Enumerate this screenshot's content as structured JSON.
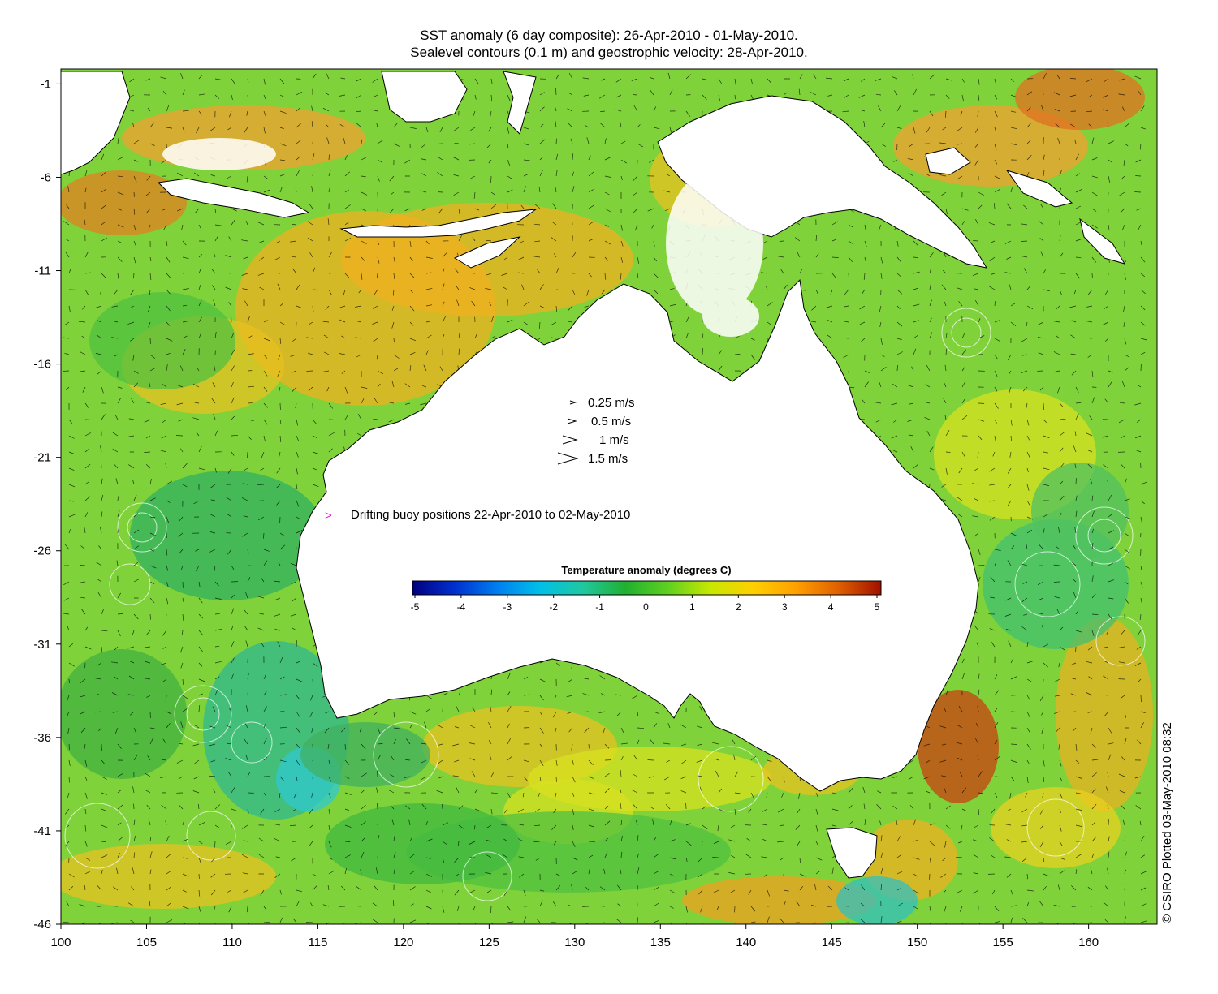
{
  "title": {
    "line1": "SST anomaly (6 day composite): 26-Apr-2010 - 01-May-2010.",
    "line2": "Sealevel contours (0.1 m) and geostrophic velocity: 28-Apr-2010."
  },
  "map": {
    "region": "Australia",
    "lon_range": [
      100,
      164
    ],
    "lat_range": [
      -46,
      0
    ],
    "x_ticks": [
      100,
      105,
      110,
      115,
      120,
      125,
      130,
      135,
      140,
      145,
      150,
      155,
      160
    ],
    "y_ticks": [
      -1,
      -6,
      -11,
      -16,
      -21,
      -26,
      -31,
      -36,
      -41,
      -46
    ],
    "land_color": "#ffffff",
    "ocean_base_color": "#7fd23a"
  },
  "velocity_legend": [
    {
      "label": "0.25 m/s",
      "speed": 0.25
    },
    {
      "label": "0.5 m/s",
      "speed": 0.5
    },
    {
      "label": "1 m/s",
      "speed": 1
    },
    {
      "label": "1.5 m/s",
      "speed": 1.5
    }
  ],
  "buoy_legend": {
    "label": "Drifting buoy positions 22-Apr-2010 to 02-May-2010",
    "color": "#e020e0"
  },
  "colorbar": {
    "title": "Temperature anomaly (degrees C)",
    "ticks": [
      -5,
      -4,
      -3,
      -2,
      -1,
      0,
      1,
      2,
      3,
      4,
      5
    ],
    "range": [
      -5,
      5
    ],
    "colors": [
      "#000080",
      "#0030d0",
      "#0080f0",
      "#00c0e8",
      "#20c8a0",
      "#20b030",
      "#60d020",
      "#c8e800",
      "#ffd000",
      "#ffa000",
      "#e06000",
      "#a01000"
    ]
  },
  "credit": "© CSIRO Plotted 03-May-2010 08:32"
}
